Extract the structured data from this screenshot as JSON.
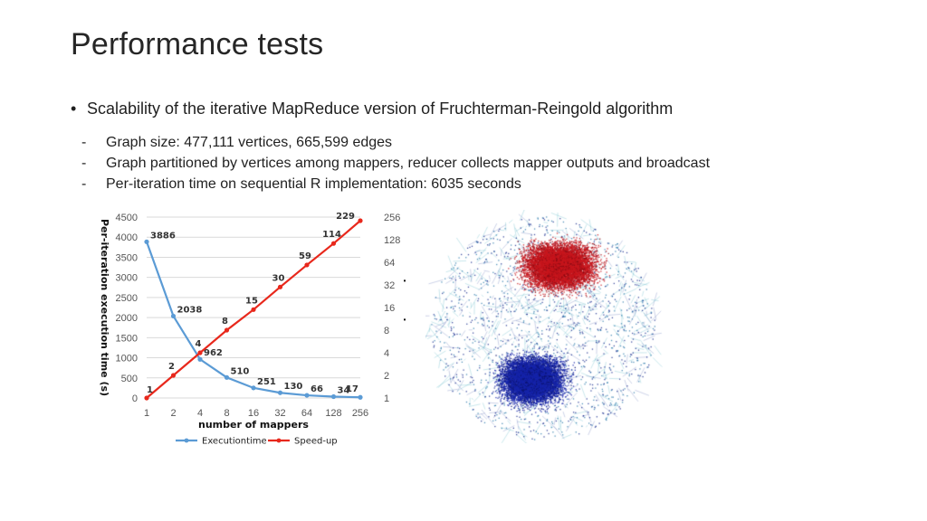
{
  "slide": {
    "title": "Performance tests",
    "bullet": "Scalability of the iterative MapReduce version of Fruchterman-Reingold algorithm",
    "dash": "-",
    "subitems": [
      "Graph size: 477,111 vertices, 665,599 edges",
      "Graph partitioned by vertices among mappers, reducer collects mapper outputs and broadcast",
      "Per-iteration time on sequential R implementation: 6035 seconds"
    ]
  },
  "chart_data": {
    "type": "line",
    "categories": [
      "1",
      "2",
      "4",
      "8",
      "16",
      "32",
      "64",
      "128",
      "256"
    ],
    "xlabel": "number of mappers",
    "ylabel": "Per-iteration execution time (s)",
    "y2label": "Speed-up",
    "ylim": [
      0,
      4500
    ],
    "yticks": [
      0,
      500,
      1000,
      1500,
      2000,
      2500,
      3000,
      3500,
      4000,
      4500
    ],
    "y2scale": "log2",
    "y2lim": [
      1,
      256
    ],
    "y2ticks": [
      1,
      2,
      4,
      8,
      16,
      32,
      64,
      128,
      256
    ],
    "grid": "horizontal",
    "legend_position": "bottom",
    "series": [
      {
        "name": "Executiontime",
        "axis": "left",
        "color": "#5b9bd5",
        "values": [
          3886,
          2038,
          962,
          510,
          251,
          130,
          66,
          34,
          17
        ]
      },
      {
        "name": "Speed-up",
        "axis": "right",
        "color": "#e8281c",
        "values": [
          1,
          2,
          4,
          8,
          15,
          30,
          59,
          114,
          229
        ]
      }
    ]
  },
  "graph_image": {
    "type": "network-layout-visualization",
    "colors": [
      "#c8161d",
      "#1a2aa8",
      "#3aa6b8"
    ]
  }
}
